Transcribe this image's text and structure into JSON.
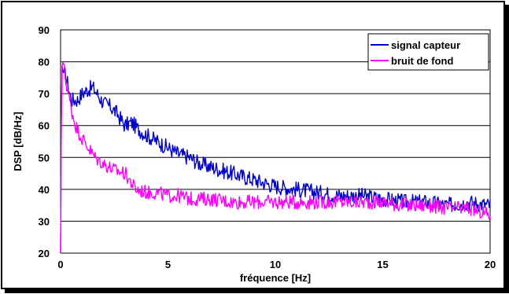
{
  "chart_data": {
    "type": "line",
    "title": "",
    "xlabel": "fréquence  [Hz]",
    "ylabel": "DSP [dB/Hz]",
    "xlim": [
      0,
      20
    ],
    "ylim": [
      20,
      90
    ],
    "xticks": [
      "0",
      "5",
      "10",
      "15",
      "20"
    ],
    "yticks": [
      "20",
      "30",
      "40",
      "50",
      "60",
      "70",
      "80",
      "90"
    ],
    "grid": "horizontal",
    "legend": "top-right",
    "series": [
      {
        "name": "signal capteur",
        "color": "#0000cc",
        "x": [
          0,
          0.05,
          0.1,
          0.2,
          0.3,
          0.5,
          0.8,
          1.0,
          1.2,
          1.5,
          1.8,
          2.0,
          2.3,
          2.6,
          3.0,
          3.3,
          3.6,
          4.0,
          4.5,
          5.0,
          5.5,
          6.0,
          6.5,
          7.0,
          7.5,
          8.0,
          8.5,
          9.0,
          9.5,
          10.0,
          11.0,
          12.0,
          13.0,
          14.0,
          15.0,
          16.0,
          17.0,
          18.0,
          19.0,
          20.0
        ],
        "y": [
          20,
          80,
          77,
          76,
          74,
          68,
          68,
          70,
          71,
          72,
          69,
          67,
          66,
          64,
          60,
          61,
          59,
          57,
          55,
          53,
          51,
          50,
          48,
          47,
          46,
          45,
          44,
          43,
          42,
          41,
          40,
          39,
          38,
          38,
          37,
          36,
          36,
          35,
          36,
          35
        ]
      },
      {
        "name": "bruit de fond",
        "color": "#ff00ff",
        "x": [
          0,
          0.05,
          0.1,
          0.15,
          0.2,
          0.3,
          0.5,
          0.7,
          1.0,
          1.3,
          1.6,
          2.0,
          2.5,
          3.0,
          3.5,
          4.0,
          4.5,
          5.0,
          5.5,
          6.0,
          7.0,
          8.0,
          9.0,
          10.0,
          11.0,
          12.0,
          13.0,
          14.0,
          15.0,
          16.0,
          17.0,
          18.0,
          19.0,
          20.0
        ],
        "y": [
          20,
          78,
          80,
          79,
          76,
          72,
          65,
          60,
          56,
          53,
          50,
          48,
          46,
          45,
          40,
          39,
          39,
          38,
          38,
          37,
          37,
          36,
          36,
          36,
          36,
          36,
          36,
          36,
          36,
          35,
          35,
          34,
          34,
          32
        ]
      }
    ]
  }
}
